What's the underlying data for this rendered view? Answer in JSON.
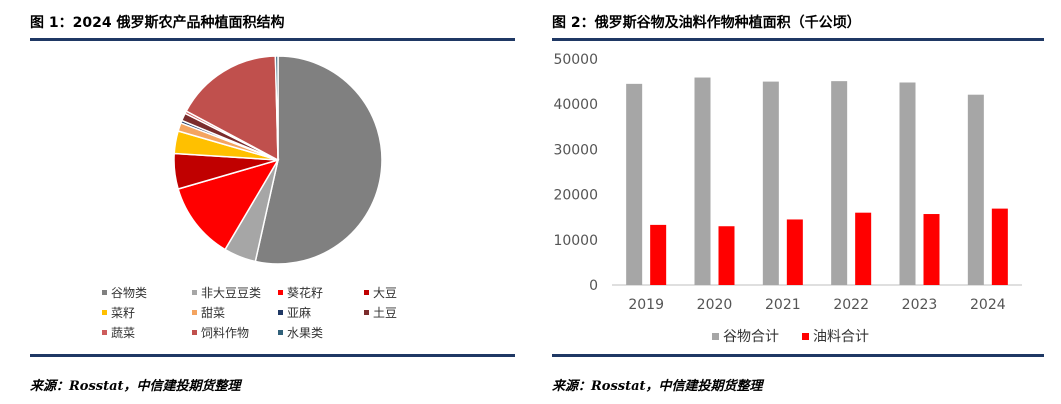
{
  "left": {
    "title": "图 1：2024 俄罗斯农产品种植面积结构",
    "source": "来源：Rosstat，中信建投期货整理"
  },
  "right": {
    "title": "图 2：俄罗斯谷物及油料作物种植面积（千公顷）",
    "source": "来源：Rosstat，中信建投期货整理"
  },
  "chart_data": [
    {
      "type": "pie",
      "title": "图 1：2024 俄罗斯农产品种植面积结构",
      "slices": [
        {
          "name": "谷物类",
          "value": 53.5,
          "color": "#808080"
        },
        {
          "name": "非大豆豆类",
          "value": 5.0,
          "color": "#a6a6a6"
        },
        {
          "name": "葵花籽",
          "value": 12.0,
          "color": "#ff0000"
        },
        {
          "name": "大豆",
          "value": 5.5,
          "color": "#c00000"
        },
        {
          "name": "菜籽",
          "value": 3.5,
          "color": "#ffc000"
        },
        {
          "name": "甜菜",
          "value": 1.3,
          "color": "#f4a460"
        },
        {
          "name": "亚麻",
          "value": 0.4,
          "color": "#1f3864"
        },
        {
          "name": "土豆",
          "value": 1.2,
          "color": "#7b2c2c"
        },
        {
          "name": "蔬菜",
          "value": 0.4,
          "color": "#cd5c5c"
        },
        {
          "name": "饲料作物",
          "value": 16.8,
          "color": "#c0504d"
        },
        {
          "name": "水果类",
          "value": 0.4,
          "color": "#31617a"
        }
      ]
    },
    {
      "type": "bar",
      "title": "图 2：俄罗斯谷物及油料作物种植面积（千公顷）",
      "categories": [
        "2019",
        "2020",
        "2021",
        "2022",
        "2023",
        "2024"
      ],
      "series": [
        {
          "name": "谷物合计",
          "color": "#a6a6a6",
          "values": [
            44500,
            45900,
            45000,
            45100,
            44800,
            42100
          ]
        },
        {
          "name": "油料合计",
          "color": "#ff0000",
          "values": [
            13300,
            13000,
            14500,
            16000,
            15700,
            16900
          ]
        }
      ],
      "ylim": [
        0,
        50000
      ],
      "yticks": [
        "0",
        "10000",
        "20000",
        "30000",
        "40000",
        "50000"
      ],
      "grid": false,
      "legend": "bottom"
    }
  ]
}
